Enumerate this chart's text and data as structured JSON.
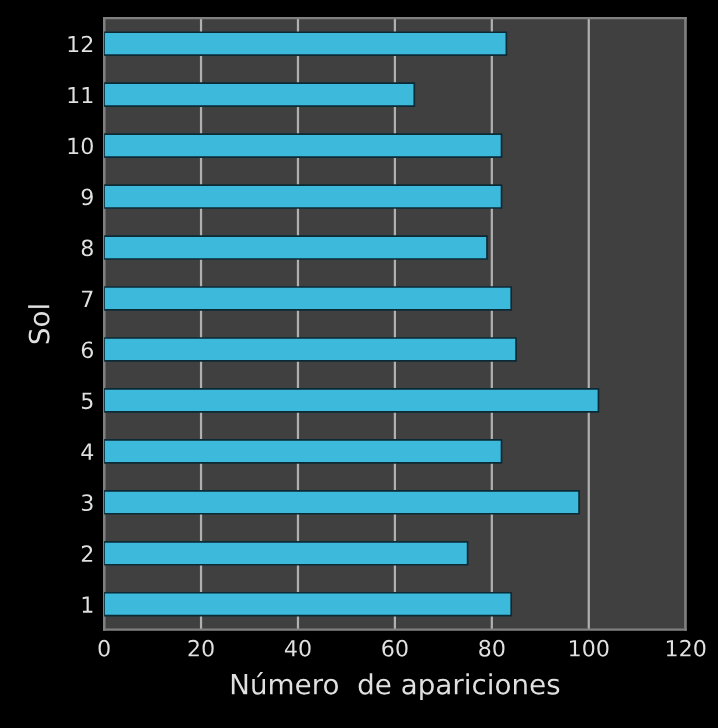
{
  "chart_data": {
    "type": "bar",
    "orientation": "horizontal",
    "xlabel": "Número  de apariciones",
    "ylabel": "Sol",
    "categories": [
      "12",
      "11",
      "10",
      "9",
      "8",
      "7",
      "6",
      "5",
      "4",
      "3",
      "2",
      "1"
    ],
    "values": [
      83,
      64,
      82,
      82,
      79,
      84,
      85,
      102,
      82,
      98,
      75,
      84
    ],
    "color": "#3db9dc",
    "xlim": [
      0,
      120
    ],
    "xticks": [
      0,
      20,
      40,
      60,
      80,
      100,
      120
    ],
    "grid": "x"
  }
}
